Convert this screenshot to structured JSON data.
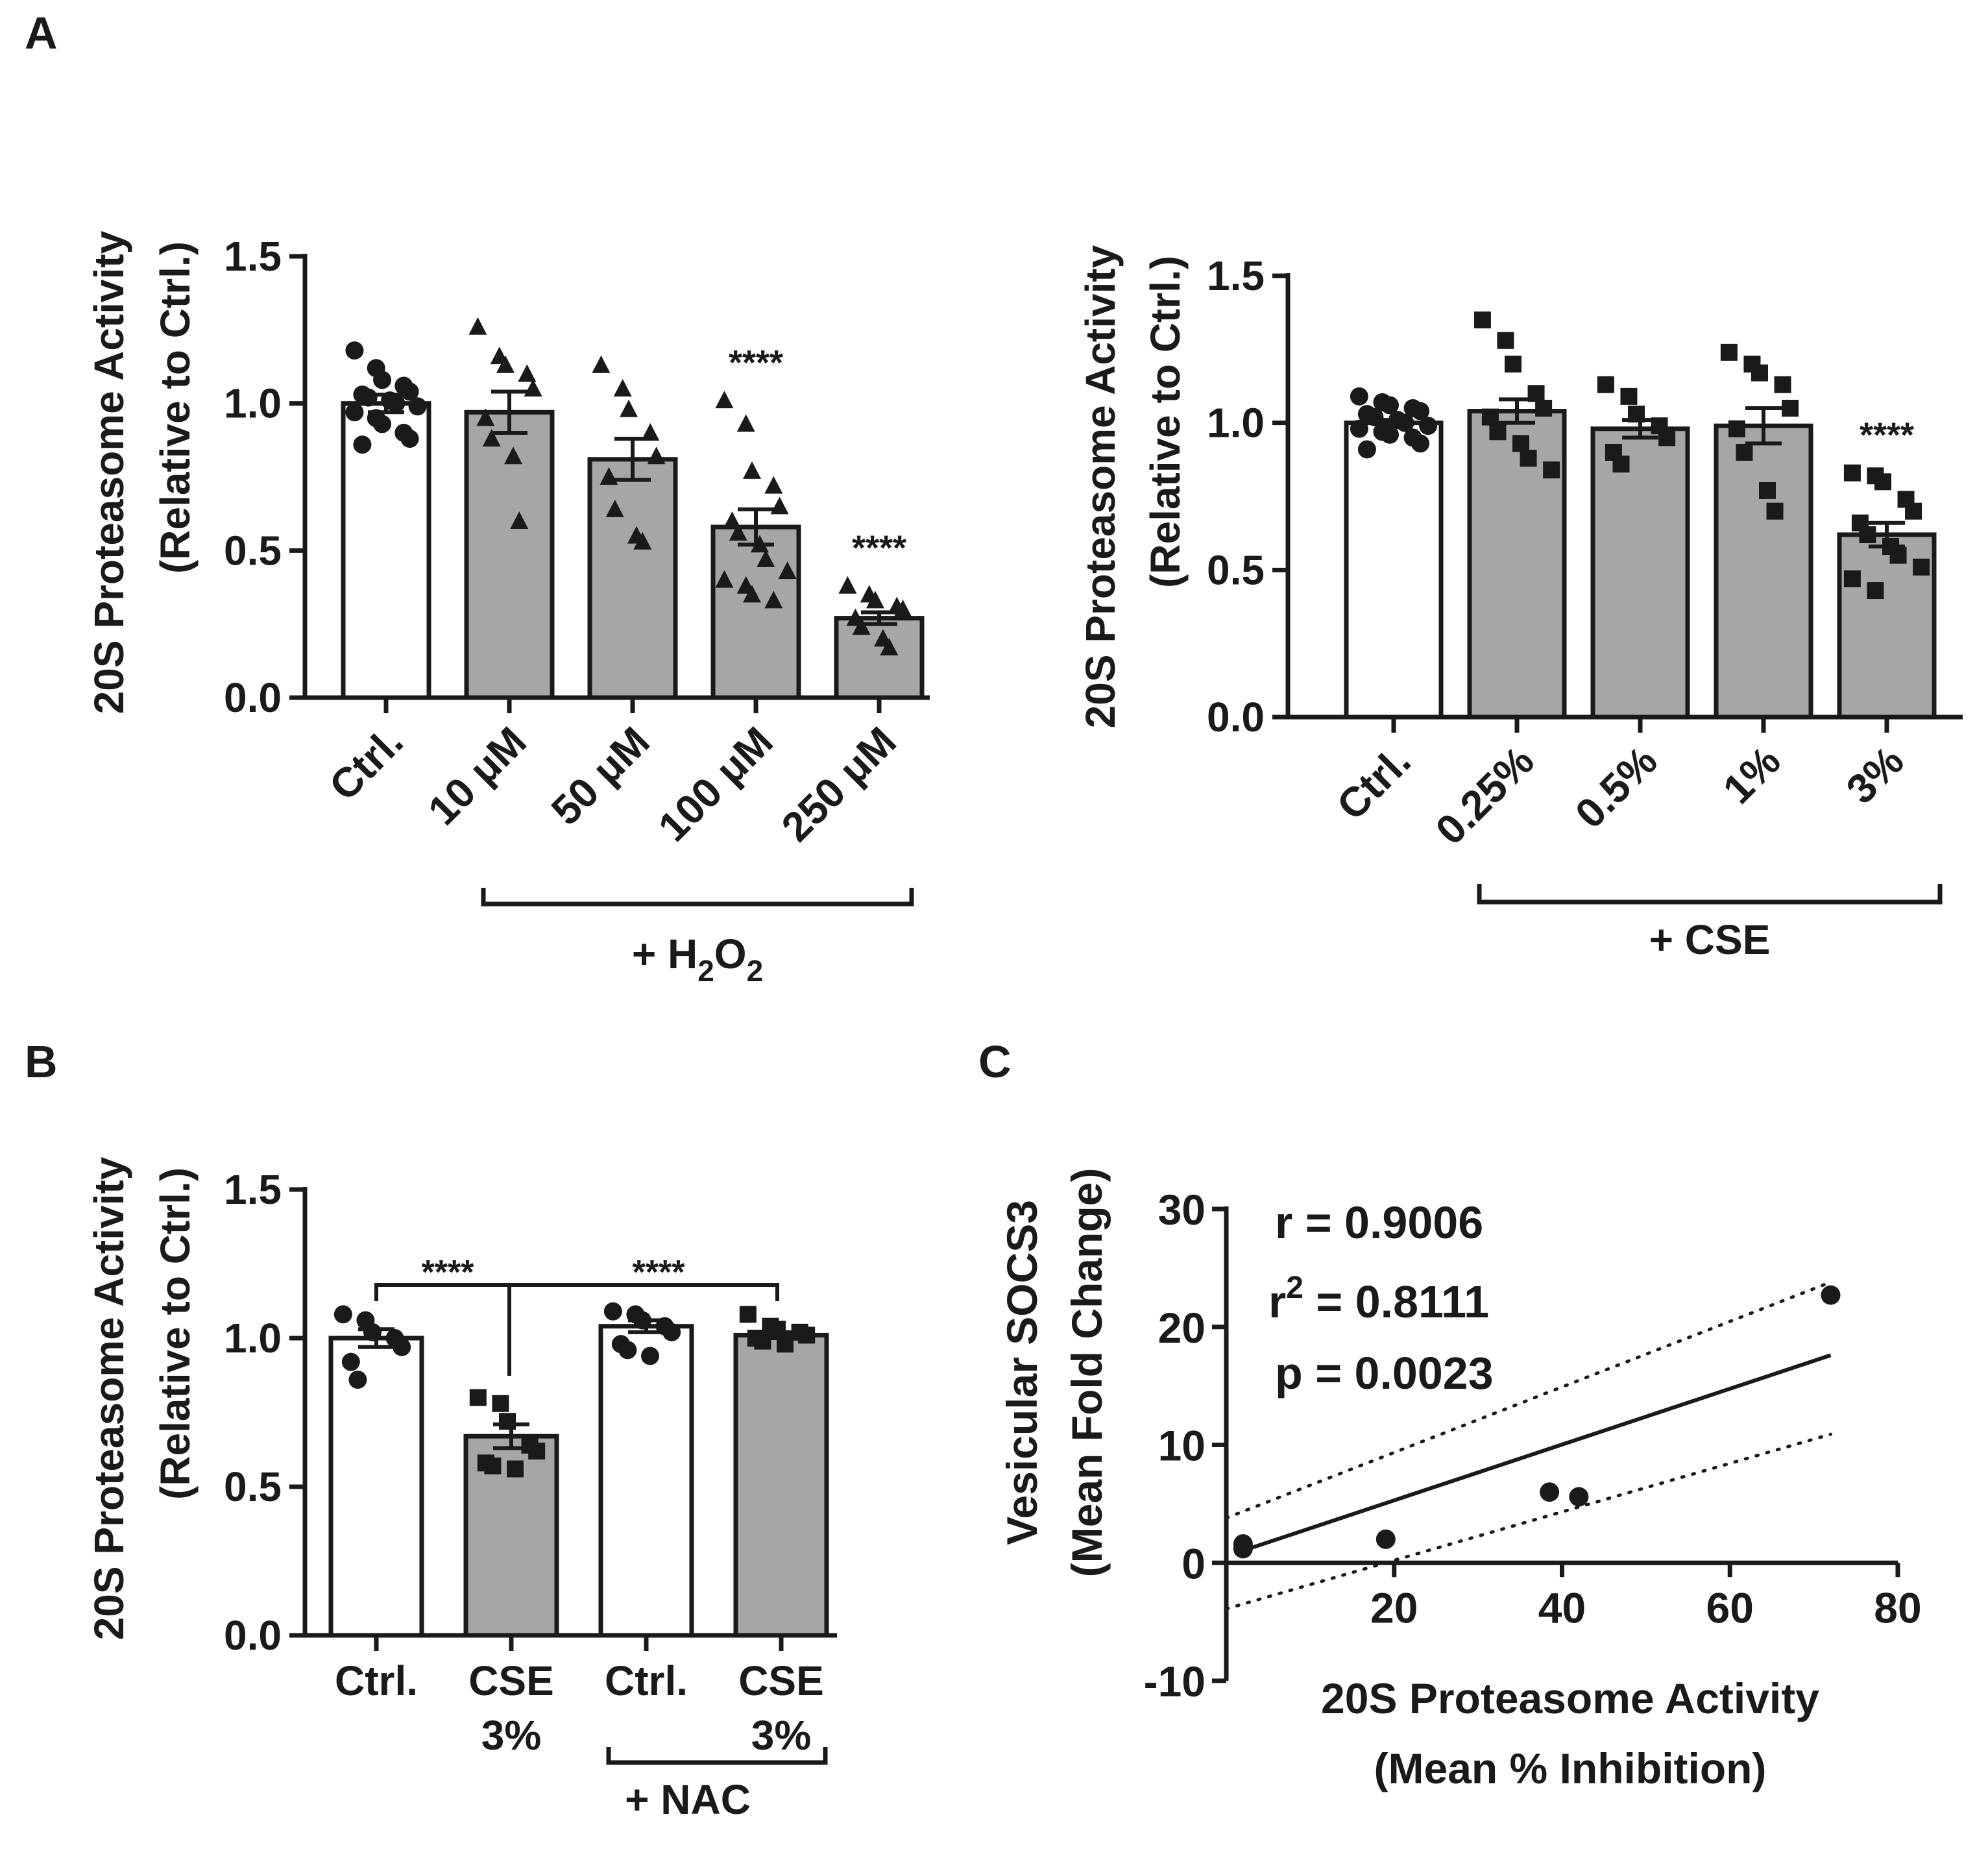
{
  "panels": {
    "A": "A",
    "B": "B",
    "C": "C"
  },
  "colors": {
    "ink": "#1a1a1a",
    "bar_white": "#ffffff",
    "bar_gray": "#a6a6a6"
  },
  "chart_data": [
    {
      "id": "A1",
      "type": "bar",
      "ylabel_line1": "20S Proteasome Activity",
      "ylabel_line2": "(Relative to Ctrl.)",
      "ylim": [
        0,
        1.5
      ],
      "yticks": [
        "0.0",
        "0.5",
        "1.0",
        "1.5"
      ],
      "categories": [
        "Ctrl.",
        "10 μM",
        "50 μM",
        "100 μM",
        "250 μM"
      ],
      "values": [
        1.0,
        0.97,
        0.81,
        0.58,
        0.27
      ],
      "sem": [
        0.03,
        0.07,
        0.07,
        0.06,
        0.02
      ],
      "bar_fill": [
        "white",
        "gray",
        "gray",
        "gray",
        "gray"
      ],
      "markers": [
        "circle",
        "triangle",
        "triangle",
        "triangle",
        "triangle"
      ],
      "points": [
        [
          1.18,
          1.12,
          1.08,
          1.06,
          1.04,
          1.03,
          1.02,
          1.01,
          1.0,
          0.99,
          0.97,
          0.95,
          0.93,
          0.9,
          0.88,
          0.86
        ],
        [
          1.26,
          1.16,
          1.13,
          1.1,
          1.05,
          0.95,
          0.88,
          0.82,
          0.6
        ],
        [
          1.13,
          1.05,
          0.98,
          0.9,
          0.82,
          0.75,
          0.64,
          0.55,
          0.53
        ],
        [
          1.01,
          0.93,
          0.77,
          0.72,
          0.65,
          0.6,
          0.56,
          0.52,
          0.47,
          0.43,
          0.4,
          0.38,
          0.35,
          0.33
        ],
        [
          0.38,
          0.35,
          0.33,
          0.31,
          0.3,
          0.27,
          0.24,
          0.2,
          0.17
        ]
      ],
      "annotations": [
        "",
        "",
        "",
        "****",
        "****"
      ],
      "bracket_label_main": "+ H",
      "bracket_label_sub1": "2",
      "bracket_label_mid": "O",
      "bracket_label_sub2": "2"
    },
    {
      "id": "A2",
      "type": "bar",
      "ylabel_line1": "20S Proteasome Activity",
      "ylabel_line2": "(Relative to Ctrl.)",
      "ylim": [
        0,
        1.5
      ],
      "yticks": [
        "0.0",
        "0.5",
        "1.0",
        "1.5"
      ],
      "categories": [
        "Ctrl.",
        "0.25%",
        "0.5%",
        "1%",
        "3%"
      ],
      "values": [
        1.0,
        1.04,
        0.98,
        0.99,
        0.62
      ],
      "sem": [
        0.01,
        0.04,
        0.03,
        0.06,
        0.04
      ],
      "bar_fill": [
        "white",
        "gray",
        "gray",
        "gray",
        "gray"
      ],
      "markers": [
        "circle",
        "square",
        "square",
        "square",
        "square"
      ],
      "points": [
        [
          1.09,
          1.07,
          1.06,
          1.05,
          1.04,
          1.03,
          1.02,
          1.01,
          1.0,
          0.99,
          0.98,
          0.97,
          0.96,
          0.95,
          0.93,
          0.91
        ],
        [
          1.35,
          1.28,
          1.2,
          1.1,
          1.05,
          1.02,
          0.97,
          0.93,
          0.88,
          0.84
        ],
        [
          1.13,
          1.09,
          1.03,
          0.99,
          0.95,
          0.9,
          0.86
        ],
        [
          1.24,
          1.2,
          1.17,
          1.13,
          1.05,
          0.98,
          0.9,
          0.77,
          0.7
        ],
        [
          0.83,
          0.82,
          0.8,
          0.74,
          0.7,
          0.66,
          0.62,
          0.58,
          0.55,
          0.51,
          0.47,
          0.43
        ]
      ],
      "annotations": [
        "",
        "",
        "",
        "",
        "****"
      ],
      "bracket_label": "+ CSE"
    },
    {
      "id": "B",
      "type": "bar",
      "ylabel_line1": "20S Proteasome Activity",
      "ylabel_line2": "(Relative to Ctrl.)",
      "ylim": [
        0,
        1.5
      ],
      "yticks": [
        "0.0",
        "0.5",
        "1.0",
        "1.5"
      ],
      "categories_line1": [
        "Ctrl.",
        "CSE",
        "Ctrl.",
        "CSE"
      ],
      "categories_line2": [
        "",
        "3%",
        "",
        "3%"
      ],
      "values": [
        1.0,
        0.67,
        1.04,
        1.01
      ],
      "sem": [
        0.03,
        0.04,
        0.02,
        0.01
      ],
      "bar_fill": [
        "white",
        "gray",
        "white",
        "gray"
      ],
      "markers": [
        "circle",
        "square",
        "circle",
        "square"
      ],
      "points": [
        [
          1.08,
          1.06,
          1.02,
          1.0,
          0.97,
          0.92,
          0.86
        ],
        [
          0.8,
          0.78,
          0.72,
          0.64,
          0.62,
          0.58,
          0.57,
          0.56
        ],
        [
          1.09,
          1.08,
          1.06,
          1.04,
          1.02,
          0.98,
          0.96,
          0.94
        ],
        [
          1.08,
          1.04,
          1.03,
          1.02,
          1.01,
          1.0,
          0.99,
          0.98
        ]
      ],
      "significance_left": "****",
      "significance_right": "****",
      "bracket_label": "+ NAC"
    },
    {
      "id": "C",
      "type": "scatter",
      "xlabel_line1": "20S Proteasome Activity",
      "xlabel_line2": "(Mean % Inhibition)",
      "ylabel_line1": "Vesicular SOCS3",
      "ylabel_line2": "(Mean Fold Change)",
      "xlim": [
        0,
        80
      ],
      "ylim": [
        -10,
        30
      ],
      "xticks": [
        "20",
        "40",
        "60",
        "80"
      ],
      "yticks": [
        "-10",
        "0",
        "10",
        "20",
        "30"
      ],
      "x": [
        2,
        2,
        19,
        38.5,
        42,
        72
      ],
      "y": [
        1.2,
        1.6,
        2.0,
        6.0,
        5.6,
        22.7
      ],
      "fit_line": {
        "x": [
          1,
          72
        ],
        "y": [
          0.8,
          17.6
        ]
      },
      "ci_upper": {
        "x": [
          0,
          72
        ],
        "y": [
          3.8,
          23.8
        ]
      },
      "ci_lower": {
        "x": [
          0,
          72
        ],
        "y": [
          -3.9,
          10.9
        ]
      },
      "stat_r": "r = 0.9006",
      "stat_r2_prefix": "r",
      "stat_r2_sup": "2",
      "stat_r2_value": " = 0.8111",
      "stat_p": "p = 0.0023"
    }
  ]
}
